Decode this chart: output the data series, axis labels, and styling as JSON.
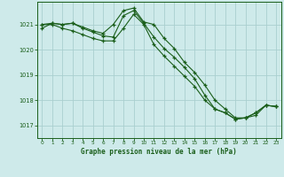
{
  "background_color": "#ceeaea",
  "grid_color": "#aacfcf",
  "line_color": "#1a5e1a",
  "title": "Graphe pression niveau de la mer (hPa)",
  "xlim": [
    -0.5,
    23.5
  ],
  "ylim": [
    1016.5,
    1021.9
  ],
  "yticks": [
    1017,
    1018,
    1019,
    1020,
    1021
  ],
  "xticks": [
    0,
    1,
    2,
    3,
    4,
    5,
    6,
    7,
    8,
    9,
    10,
    11,
    12,
    13,
    14,
    15,
    16,
    17,
    18,
    19,
    20,
    21,
    22,
    23
  ],
  "series1_x": [
    0,
    1,
    2,
    3,
    4,
    5,
    6,
    7,
    8,
    9,
    10,
    11,
    12,
    13,
    14,
    15,
    16,
    17,
    18,
    19,
    20,
    21,
    22,
    23
  ],
  "series1_y": [
    1020.85,
    1021.05,
    1021.0,
    1021.05,
    1020.9,
    1020.75,
    1020.65,
    1021.0,
    1021.55,
    1021.65,
    1021.1,
    1021.0,
    1020.45,
    1020.05,
    1019.5,
    1019.1,
    1018.6,
    1018.0,
    1017.65,
    1017.3,
    1017.3,
    1017.5,
    1017.8,
    1017.75
  ],
  "series2_x": [
    0,
    1,
    2,
    3,
    4,
    5,
    6,
    7,
    8,
    9,
    10,
    11,
    12,
    13,
    14,
    15,
    16,
    17,
    18,
    19,
    20,
    21,
    22,
    23
  ],
  "series2_y": [
    1021.0,
    1021.05,
    1021.0,
    1021.05,
    1020.85,
    1020.7,
    1020.55,
    1020.5,
    1021.35,
    1021.55,
    1021.05,
    1020.5,
    1020.05,
    1019.7,
    1019.3,
    1018.85,
    1018.2,
    1017.65,
    1017.5,
    1017.25,
    1017.3,
    1017.4,
    1017.8,
    1017.75
  ],
  "series3_x": [
    0,
    1,
    2,
    3,
    4,
    5,
    6,
    7,
    8,
    9,
    10,
    11,
    12,
    13,
    14,
    15,
    16,
    17,
    18,
    19,
    20,
    21,
    22,
    23
  ],
  "series3_y": [
    1021.0,
    1021.0,
    1020.85,
    1020.75,
    1020.6,
    1020.45,
    1020.35,
    1020.35,
    1020.85,
    1021.4,
    1021.0,
    1020.2,
    1019.75,
    1019.35,
    1018.95,
    1018.55,
    1018.0,
    1017.65,
    1017.5,
    1017.25,
    1017.3,
    1017.5,
    1017.8,
    1017.75
  ]
}
